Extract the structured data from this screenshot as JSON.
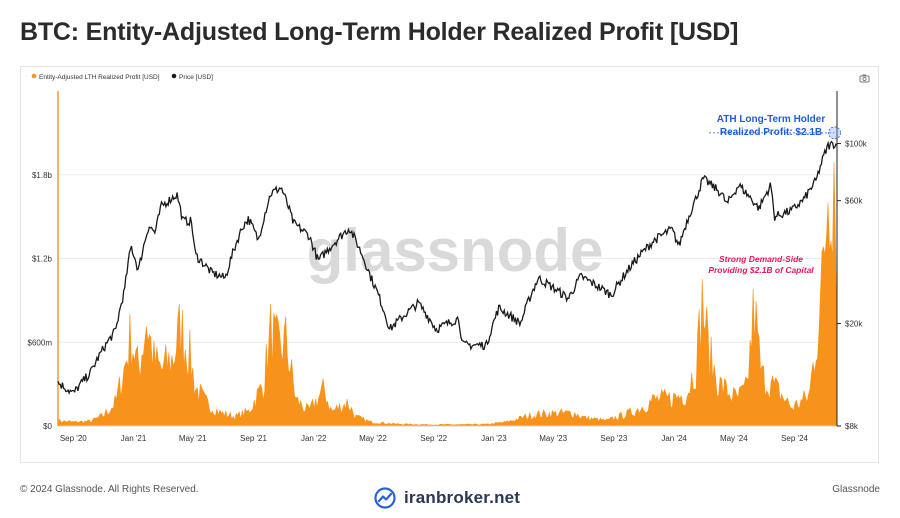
{
  "page": {
    "title": "BTC: Entity-Adjusted Long-Term Holder Realized Profit [USD]",
    "footer_copyright": "© 2024 Glassnode. All Rights Reserved.",
    "footer_brand": "Glassnode",
    "branding_text": "iranbroker.net",
    "watermark": "glassnode"
  },
  "colors": {
    "profit": "#f7931a",
    "price": "#1a1a1a",
    "annotation_blue": "#1f5fd6",
    "annotation_red": "#e8175d"
  },
  "chart_data": {
    "type": "area",
    "legend": [
      "Entity-Adjusted LTH Realized Profit [USD]",
      "Price [USD]"
    ],
    "legend_position": "top-left",
    "x_tick_labels": [
      "Sep '20",
      "Jan '21",
      "May '21",
      "Sep '21",
      "Jan '22",
      "May '22",
      "Sep '22",
      "Jan '23",
      "May '23",
      "Sep '23",
      "Jan '24",
      "May '24",
      "Sep '24"
    ],
    "x_range": [
      "2020-08-15",
      "2024-12-10"
    ],
    "left_axis": {
      "ticks": [
        "$0",
        "$600m",
        "$1.2b",
        "$1.8b"
      ],
      "values": [
        0,
        600000000,
        1200000000,
        1800000000
      ],
      "range": [
        0,
        2400000000
      ]
    },
    "right_axis": {
      "scale": "log",
      "ticks": [
        "$8k",
        "$20k",
        "$60k",
        "$100k"
      ],
      "values": [
        8000,
        20000,
        60000,
        100000
      ],
      "range": [
        8000,
        160000
      ]
    },
    "grid": true,
    "series": [
      {
        "name": "Entity-Adjusted LTH Realized Profit [USD]",
        "unit": "USD",
        "points": [
          [
            "2020-08-15",
            40000000
          ],
          [
            "2020-09-15",
            30000000
          ],
          [
            "2020-10-20",
            35000000
          ],
          [
            "2020-11-15",
            80000000
          ],
          [
            "2020-12-10",
            180000000
          ],
          [
            "2020-12-28",
            450000000
          ],
          [
            "2021-01-10",
            700000000
          ],
          [
            "2021-01-25",
            420000000
          ],
          [
            "2021-02-10",
            820000000
          ],
          [
            "2021-02-25",
            500000000
          ],
          [
            "2021-03-12",
            430000000
          ],
          [
            "2021-04-05",
            520000000
          ],
          [
            "2021-04-20",
            760000000
          ],
          [
            "2021-05-10",
            520000000
          ],
          [
            "2021-05-20",
            300000000
          ],
          [
            "2021-06-10",
            180000000
          ],
          [
            "2021-07-10",
            100000000
          ],
          [
            "2021-08-10",
            70000000
          ],
          [
            "2021-09-05",
            110000000
          ],
          [
            "2021-10-05",
            320000000
          ],
          [
            "2021-10-20",
            720000000
          ],
          [
            "2021-11-05",
            580000000
          ],
          [
            "2021-11-20",
            650000000
          ],
          [
            "2021-12-10",
            200000000
          ],
          [
            "2022-01-05",
            110000000
          ],
          [
            "2022-02-05",
            280000000
          ],
          [
            "2022-02-20",
            110000000
          ],
          [
            "2022-03-25",
            180000000
          ],
          [
            "2022-04-10",
            70000000
          ],
          [
            "2022-05-10",
            30000000
          ],
          [
            "2022-07-01",
            15000000
          ],
          [
            "2022-09-01",
            10000000
          ],
          [
            "2022-11-01",
            10000000
          ],
          [
            "2023-01-01",
            12000000
          ],
          [
            "2023-02-10",
            30000000
          ],
          [
            "2023-03-20",
            70000000
          ],
          [
            "2023-04-15",
            90000000
          ],
          [
            "2023-06-25",
            100000000
          ],
          [
            "2023-07-20",
            60000000
          ],
          [
            "2023-09-01",
            40000000
          ],
          [
            "2023-10-25",
            110000000
          ],
          [
            "2023-12-05",
            200000000
          ],
          [
            "2024-01-10",
            210000000
          ],
          [
            "2024-02-10",
            250000000
          ],
          [
            "2024-03-01",
            500000000
          ],
          [
            "2024-03-13",
            980000000
          ],
          [
            "2024-03-25",
            550000000
          ],
          [
            "2024-04-15",
            320000000
          ],
          [
            "2024-05-20",
            210000000
          ],
          [
            "2024-06-10",
            280000000
          ],
          [
            "2024-06-25",
            900000000
          ],
          [
            "2024-07-10",
            380000000
          ],
          [
            "2024-08-05",
            300000000
          ],
          [
            "2024-09-10",
            140000000
          ],
          [
            "2024-10-15",
            230000000
          ],
          [
            "2024-11-10",
            1050000000
          ],
          [
            "2024-11-22",
            1900000000
          ],
          [
            "2024-12-05",
            2100000000
          ],
          [
            "2024-12-10",
            850000000
          ]
        ]
      },
      {
        "name": "Price [USD]",
        "unit": "USD",
        "points": [
          [
            "2020-08-15",
            11800
          ],
          [
            "2020-09-15",
            10700
          ],
          [
            "2020-10-20",
            12900
          ],
          [
            "2020-11-15",
            16000
          ],
          [
            "2020-12-10",
            18800
          ],
          [
            "2020-12-28",
            27000
          ],
          [
            "2021-01-10",
            40000
          ],
          [
            "2021-01-25",
            32000
          ],
          [
            "2021-02-15",
            48000
          ],
          [
            "2021-02-28",
            45000
          ],
          [
            "2021-03-12",
            57000
          ],
          [
            "2021-04-13",
            63500
          ],
          [
            "2021-04-25",
            50000
          ],
          [
            "2021-05-12",
            50000
          ],
          [
            "2021-05-20",
            37000
          ],
          [
            "2021-06-22",
            31500
          ],
          [
            "2021-07-20",
            30000
          ],
          [
            "2021-08-25",
            48000
          ],
          [
            "2021-09-05",
            51000
          ],
          [
            "2021-09-25",
            42000
          ],
          [
            "2021-10-20",
            64000
          ],
          [
            "2021-11-10",
            67500
          ],
          [
            "2021-12-05",
            49000
          ],
          [
            "2022-01-05",
            44000
          ],
          [
            "2022-01-24",
            35000
          ],
          [
            "2022-03-28",
            47000
          ],
          [
            "2022-05-10",
            30500
          ],
          [
            "2022-06-18",
            19000
          ],
          [
            "2022-08-15",
            24000
          ],
          [
            "2022-09-20",
            19000
          ],
          [
            "2022-11-05",
            21000
          ],
          [
            "2022-11-12",
            16500
          ],
          [
            "2022-12-31",
            16500
          ],
          [
            "2023-01-25",
            23000
          ],
          [
            "2023-03-10",
            20000
          ],
          [
            "2023-04-15",
            30000
          ],
          [
            "2023-06-15",
            25000
          ],
          [
            "2023-07-10",
            30500
          ],
          [
            "2023-09-10",
            25800
          ],
          [
            "2023-10-25",
            34500
          ],
          [
            "2023-12-05",
            42000
          ],
          [
            "2024-01-10",
            46500
          ],
          [
            "2024-01-25",
            40000
          ],
          [
            "2024-02-28",
            61000
          ],
          [
            "2024-03-14",
            73000
          ],
          [
            "2024-04-20",
            64000
          ],
          [
            "2024-05-01",
            58000
          ],
          [
            "2024-05-25",
            69000
          ],
          [
            "2024-07-05",
            56000
          ],
          [
            "2024-07-29",
            69000
          ],
          [
            "2024-08-05",
            52000
          ],
          [
            "2024-09-10",
            55000
          ],
          [
            "2024-10-05",
            61000
          ],
          [
            "2024-10-29",
            72000
          ],
          [
            "2024-11-12",
            88000
          ],
          [
            "2024-11-22",
            98000
          ],
          [
            "2024-12-05",
            100000
          ],
          [
            "2024-12-10",
            98000
          ]
        ]
      }
    ],
    "annotations": [
      {
        "text_lines": [
          "ATH Long-Term Holder",
          "Realized Profit: $2.1B"
        ],
        "x": "2024-12-05",
        "y": 2100000000
      },
      {
        "text_lines": [
          "Strong Demand-Side",
          "Providing $2.1B of Capital"
        ],
        "x": "2024-07-20",
        "y": 1280000000
      }
    ]
  }
}
